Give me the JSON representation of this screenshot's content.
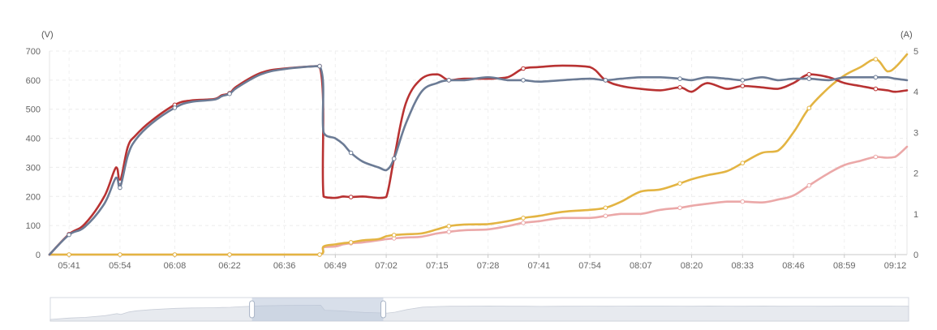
{
  "chart_data": {
    "type": "line",
    "title": "",
    "left_unit": "(V)",
    "right_unit": "(A)",
    "x_ticks": [
      "05:41",
      "05:54",
      "06:08",
      "06:22",
      "06:36",
      "06:49",
      "07:02",
      "07:15",
      "07:28",
      "07:41",
      "07:54",
      "08:07",
      "08:20",
      "08:33",
      "08:46",
      "08:59",
      "09:12"
    ],
    "y_left_ticks": [
      0,
      100,
      200,
      300,
      400,
      500,
      600,
      700
    ],
    "y_right_ticks": [
      0,
      1,
      2,
      3,
      4,
      5
    ],
    "ylim_left": [
      0,
      700
    ],
    "ylim_right": [
      0,
      5
    ],
    "grid": "dashed",
    "x": [
      "05:36",
      "05:41",
      "05:45",
      "05:50",
      "05:53",
      "05:54",
      "05:56",
      "05:58",
      "06:02",
      "06:08",
      "06:12",
      "06:18",
      "06:20",
      "06:22",
      "06:24",
      "06:30",
      "06:36",
      "06:45",
      "06:46",
      "06:49",
      "06:51",
      "06:53",
      "06:56",
      "07:00",
      "07:02",
      "07:04",
      "07:07",
      "07:11",
      "07:15",
      "07:18",
      "07:22",
      "07:28",
      "07:33",
      "07:37",
      "07:41",
      "07:47",
      "07:54",
      "07:58",
      "08:02",
      "08:07",
      "08:12",
      "08:17",
      "08:20",
      "08:24",
      "08:29",
      "08:33",
      "08:38",
      "08:42",
      "08:46",
      "08:50",
      "08:55",
      "08:59",
      "09:03",
      "09:07",
      "09:10",
      "09:12",
      "09:15"
    ],
    "series": [
      {
        "axis": "left",
        "color": "#b83232",
        "values": [
          0,
          70,
          105,
          200,
          300,
          250,
          370,
          410,
          460,
          515,
          530,
          535,
          548,
          555,
          580,
          625,
          640,
          648,
          200,
          195,
          200,
          198,
          200,
          195,
          198,
          330,
          520,
          605,
          620,
          600,
          605,
          605,
          610,
          640,
          645,
          650,
          645,
          600,
          580,
          570,
          565,
          575,
          560,
          590,
          570,
          580,
          575,
          570,
          590,
          620,
          610,
          590,
          580,
          570,
          565,
          560,
          565
        ]
      },
      {
        "axis": "left",
        "color": "#6b7b95",
        "values": [
          0,
          68,
          95,
          175,
          265,
          230,
          340,
          395,
          450,
          505,
          525,
          533,
          545,
          553,
          575,
          620,
          638,
          648,
          420,
          400,
          380,
          350,
          320,
          300,
          290,
          330,
          450,
          560,
          590,
          600,
          600,
          610,
          600,
          600,
          595,
          600,
          605,
          600,
          605,
          610,
          610,
          605,
          600,
          610,
          605,
          600,
          610,
          600,
          605,
          605,
          600,
          610,
          610,
          610,
          610,
          605,
          600
        ]
      },
      {
        "axis": "right",
        "color": "#e3b442",
        "values": [
          0,
          0,
          0,
          0,
          0,
          0,
          0,
          0,
          0,
          0,
          0,
          0,
          0,
          0,
          0,
          0,
          0,
          0,
          0.2,
          0.25,
          0.28,
          0.3,
          0.35,
          0.38,
          0.45,
          0.48,
          0.5,
          0.52,
          0.62,
          0.7,
          0.74,
          0.75,
          0.82,
          0.9,
          0.95,
          1.05,
          1.1,
          1.15,
          1.3,
          1.55,
          1.6,
          1.75,
          1.85,
          1.95,
          2.05,
          2.25,
          2.5,
          2.55,
          3.0,
          3.6,
          4.1,
          4.4,
          4.6,
          4.8,
          4.5,
          4.6,
          4.92
        ]
      },
      {
        "axis": "right",
        "color": "#eba8a8",
        "values": [
          0,
          0,
          0,
          0,
          0,
          0,
          0,
          0,
          0,
          0,
          0,
          0,
          0,
          0,
          0,
          0,
          0,
          0,
          0.18,
          0.2,
          0.25,
          0.28,
          0.3,
          0.35,
          0.38,
          0.4,
          0.42,
          0.44,
          0.52,
          0.56,
          0.6,
          0.62,
          0.7,
          0.78,
          0.82,
          0.9,
          0.9,
          0.95,
          1.0,
          1.0,
          1.1,
          1.15,
          1.2,
          1.25,
          1.3,
          1.3,
          1.28,
          1.35,
          1.45,
          1.7,
          2.0,
          2.2,
          2.3,
          2.4,
          2.38,
          2.4,
          2.65
        ]
      }
    ],
    "data_zoom": {
      "range_start_fraction": 0.235,
      "range_end_fraction": 0.388
    }
  }
}
